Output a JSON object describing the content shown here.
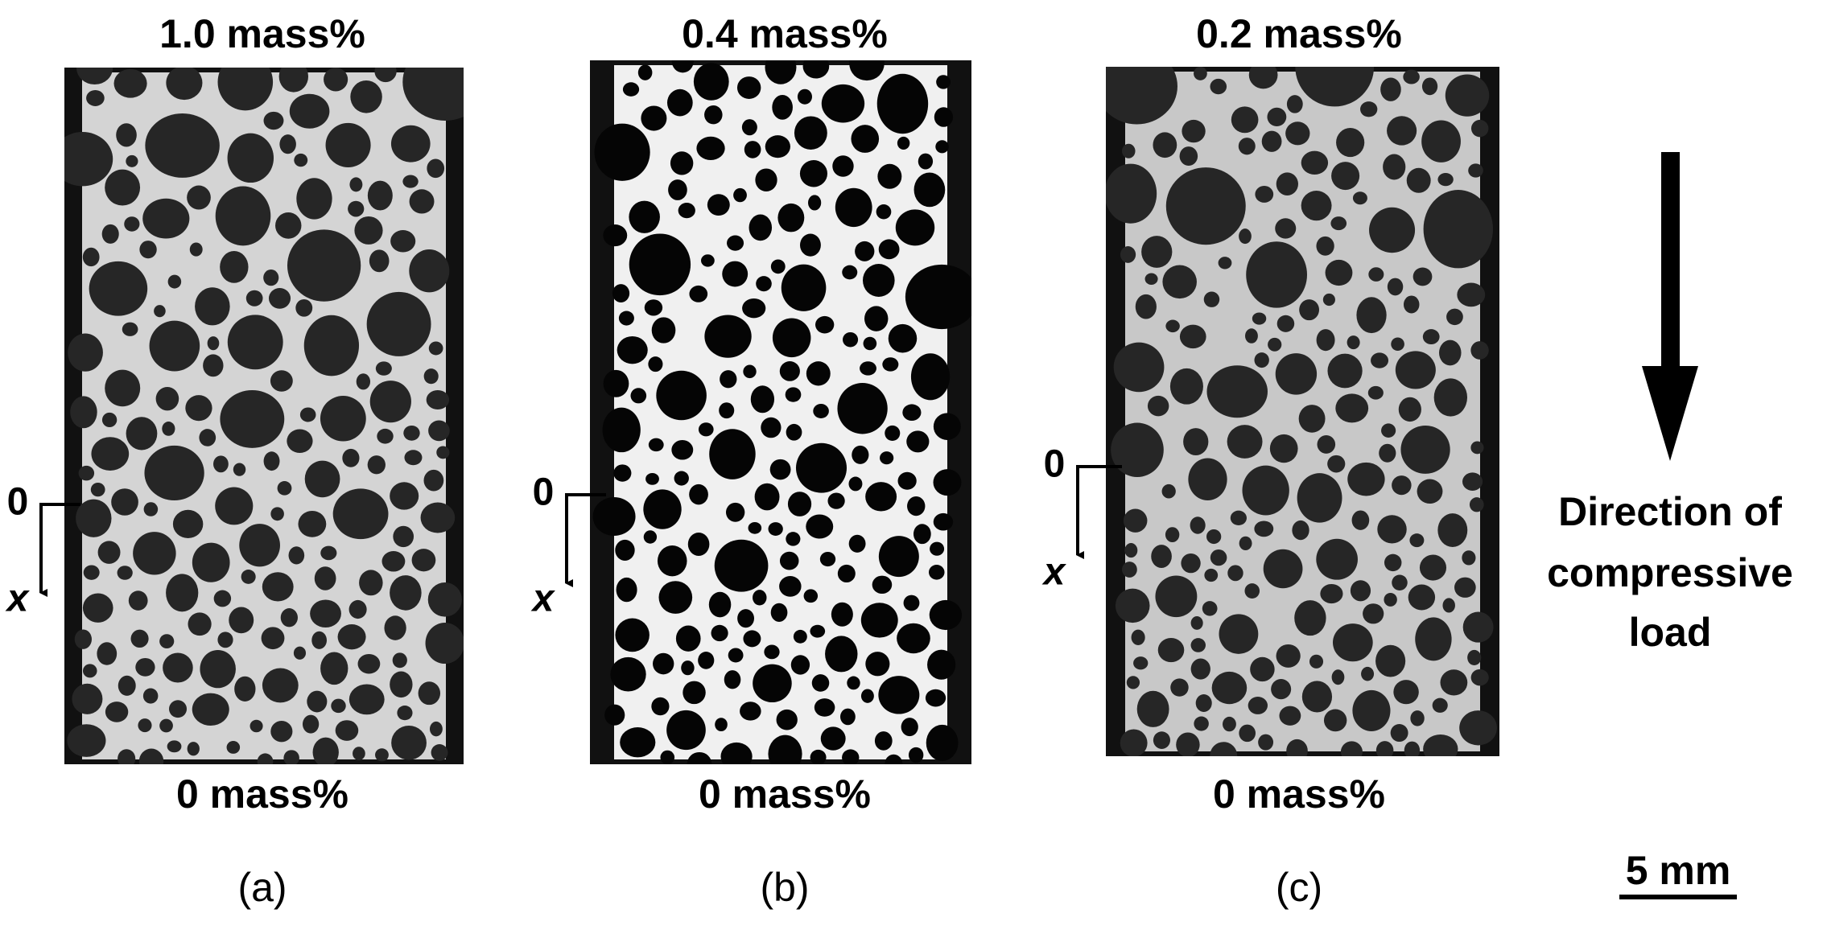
{
  "panels": [
    {
      "top_label": "1.0 mass%",
      "bottom_label": "0 mass%",
      "caption": "(a)",
      "origin_label": "0",
      "axis_label": "x"
    },
    {
      "top_label": "0.4 mass%",
      "bottom_label": "0 mass%",
      "caption": "(b)",
      "origin_label": "0",
      "axis_label": "x"
    },
    {
      "top_label": "0.2 mass%",
      "bottom_label": "0 mass%",
      "caption": "(c)",
      "origin_label": "0",
      "axis_label": "x"
    }
  ],
  "load_label": [
    "Direction of",
    "compressive",
    "load"
  ],
  "scale_bar": "5 mm"
}
